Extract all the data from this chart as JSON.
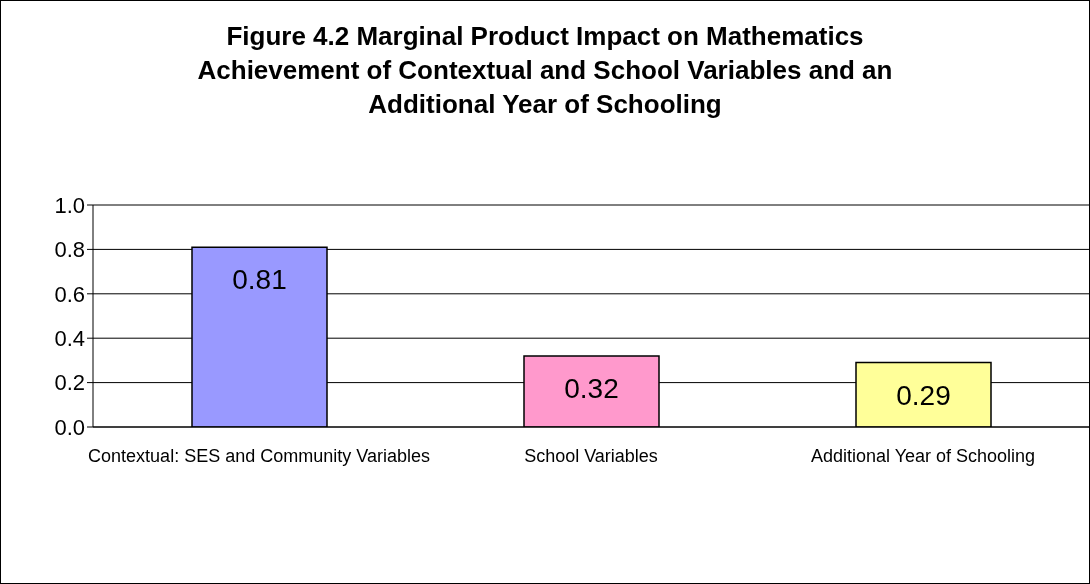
{
  "chart_data": {
    "type": "bar",
    "title": "Figure 4.2 Marginal Product Impact on Mathematics Achievement of Contextual and School Variables and an Additional Year of Schooling",
    "categories": [
      "Contextual: SES and Community Variables",
      "School Variables",
      "Additional Year of Schooling"
    ],
    "values": [
      0.81,
      0.32,
      0.29
    ],
    "colors": [
      "#9999ff",
      "#ff99cc",
      "#ffff99"
    ],
    "ylim": [
      0,
      1
    ],
    "yticks": [
      {
        "value": 0,
        "label": "0.0"
      },
      {
        "value": 0.2,
        "label": "0.2"
      },
      {
        "value": 0.4,
        "label": "0.4"
      },
      {
        "value": 0.6,
        "label": "0.6"
      },
      {
        "value": 0.8,
        "label": "0.8"
      },
      {
        "value": 1,
        "label": "1.0"
      }
    ],
    "grid": "y",
    "data_labels": true
  }
}
